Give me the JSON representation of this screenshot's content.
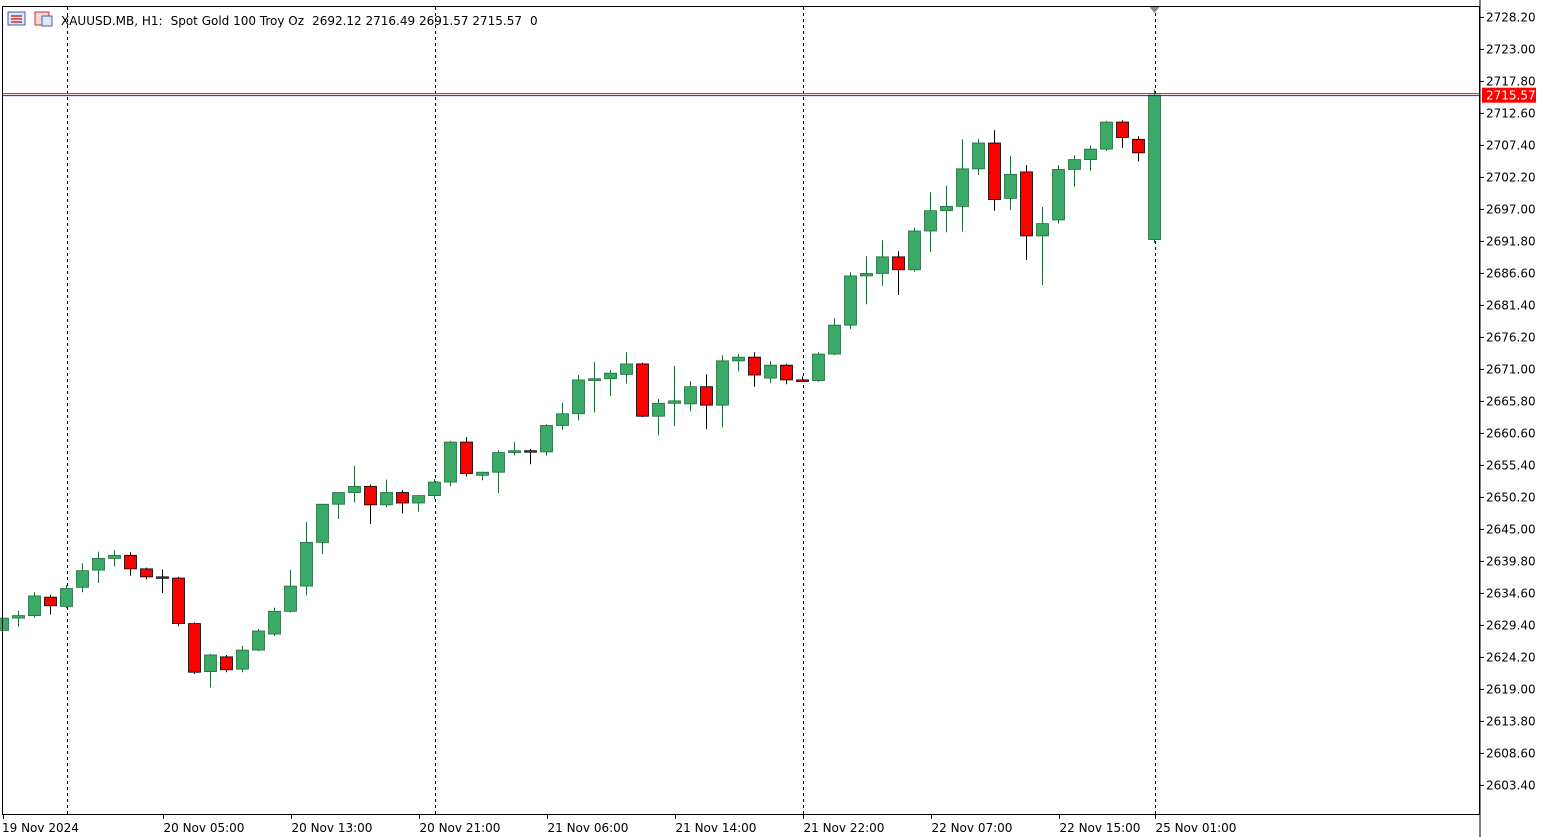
{
  "header": {
    "symbol": "XAUUSD.MB, H1:",
    "description": "Spot Gold 100 Troy Oz",
    "ohlc": "2692.12 2716.49 2691.57 2715.57",
    "volume": "0"
  },
  "colors": {
    "bull": "#3aaa66",
    "bear": "#ff0000",
    "price_line_red": "#ff0000",
    "price_line_blue": "#1a1aff",
    "price_label_bg": "#ff0000",
    "grid_separator": "#000000",
    "border": "#000000"
  },
  "icons": [
    "chart-list-icon",
    "chart-window-icon"
  ],
  "chart_data": {
    "type": "candlestick",
    "title": "XAUUSD.MB, H1:  Spot Gold 100 Troy Oz",
    "ylim": [
      2598.6,
      2729.9
    ],
    "y_ticks": [
      "2728.20",
      "2723.00",
      "2717.80",
      "2712.60",
      "2707.40",
      "2702.20",
      "2697.00",
      "2691.80",
      "2686.60",
      "2681.40",
      "2676.20",
      "2671.00",
      "2665.80",
      "2660.60",
      "2655.40",
      "2650.20",
      "2645.00",
      "2639.80",
      "2634.60",
      "2629.40",
      "2624.20",
      "2619.00",
      "2613.80",
      "2608.60",
      "2603.40"
    ],
    "y_tick_values": [
      2728.2,
      2723.0,
      2717.8,
      2712.6,
      2707.4,
      2702.2,
      2697.0,
      2691.8,
      2686.6,
      2681.4,
      2676.2,
      2671.0,
      2665.8,
      2660.6,
      2655.4,
      2650.2,
      2645.0,
      2639.8,
      2634.6,
      2629.4,
      2624.2,
      2619.0,
      2613.8,
      2608.6,
      2603.4
    ],
    "x_labels": [
      {
        "label": "19 Nov 2024",
        "bar": 0
      },
      {
        "label": "20 Nov 05:00",
        "bar": 10
      },
      {
        "label": "20 Nov 13:00",
        "bar": 18
      },
      {
        "label": "20 Nov 21:00",
        "bar": 26
      },
      {
        "label": "21 Nov 06:00",
        "bar": 34
      },
      {
        "label": "21 Nov 14:00",
        "bar": 42
      },
      {
        "label": "21 Nov 22:00",
        "bar": 50
      },
      {
        "label": "22 Nov 07:00",
        "bar": 58
      },
      {
        "label": "22 Nov 15:00",
        "bar": 66
      },
      {
        "label": "25 Nov 01:00",
        "bar": 72
      }
    ],
    "session_separators": [
      4,
      27,
      50,
      72
    ],
    "last_price": 2715.57,
    "last_price_label": "2715.57",
    "candles": [
      [
        2628.6,
        2630.9,
        2628.0,
        2630.6
      ],
      [
        2630.6,
        2631.8,
        2629.2,
        2631.0
      ],
      [
        2631.0,
        2634.8,
        2630.7,
        2634.2
      ],
      [
        2634.0,
        2634.4,
        2631.2,
        2632.6
      ],
      [
        2632.5,
        2636.0,
        2632.2,
        2635.4
      ],
      [
        2635.6,
        2639.5,
        2634.8,
        2638.3
      ],
      [
        2638.4,
        2641.4,
        2636.3,
        2640.3
      ],
      [
        2640.3,
        2641.6,
        2639.0,
        2640.8
      ],
      [
        2640.8,
        2641.3,
        2637.5,
        2638.6
      ],
      [
        2638.6,
        2638.8,
        2636.9,
        2637.3
      ],
      [
        2637.3,
        2638.5,
        2634.7,
        2637.1
      ],
      [
        2637.1,
        2637.3,
        2629.3,
        2629.7
      ],
      [
        2629.7,
        2629.9,
        2621.5,
        2621.8
      ],
      [
        2621.9,
        2624.8,
        2619.3,
        2624.6
      ],
      [
        2624.3,
        2624.6,
        2621.8,
        2622.2
      ],
      [
        2622.3,
        2626.1,
        2621.8,
        2625.4
      ],
      [
        2625.4,
        2628.8,
        2625.2,
        2628.5
      ],
      [
        2628.0,
        2632.3,
        2627.7,
        2631.7
      ],
      [
        2631.7,
        2638.4,
        2631.5,
        2635.8
      ],
      [
        2635.8,
        2646.2,
        2634.3,
        2642.9
      ],
      [
        2642.9,
        2649.1,
        2641.0,
        2649.1
      ],
      [
        2649.1,
        2651.0,
        2646.7,
        2651.0
      ],
      [
        2651.0,
        2655.3,
        2649.4,
        2652.0
      ],
      [
        2652.0,
        2652.3,
        2645.9,
        2649.0
      ],
      [
        2649.0,
        2653.1,
        2648.6,
        2651.0
      ],
      [
        2651.0,
        2651.4,
        2647.6,
        2649.3
      ],
      [
        2649.3,
        2650.6,
        2647.9,
        2650.5
      ],
      [
        2650.5,
        2653.2,
        2649.9,
        2652.7
      ],
      [
        2652.7,
        2659.4,
        2652.0,
        2659.2
      ],
      [
        2659.2,
        2660.0,
        2653.6,
        2654.1
      ],
      [
        2653.8,
        2654.4,
        2653.0,
        2654.3
      ],
      [
        2654.3,
        2657.9,
        2650.9,
        2657.5
      ],
      [
        2657.5,
        2659.2,
        2657.0,
        2657.8
      ],
      [
        2657.8,
        2658.1,
        2655.6,
        2657.6
      ],
      [
        2657.6,
        2662.1,
        2657.0,
        2661.9
      ],
      [
        2661.9,
        2665.6,
        2661.2,
        2663.8
      ],
      [
        2663.8,
        2670.1,
        2662.7,
        2669.3
      ],
      [
        2669.2,
        2672.2,
        2664.0,
        2669.5
      ],
      [
        2669.5,
        2670.9,
        2666.7,
        2670.4
      ],
      [
        2670.2,
        2673.8,
        2668.7,
        2671.9
      ],
      [
        2671.9,
        2672.1,
        2663.3,
        2663.4
      ],
      [
        2663.4,
        2666.2,
        2660.3,
        2665.5
      ],
      [
        2665.5,
        2671.6,
        2661.8,
        2665.9
      ],
      [
        2665.4,
        2669.1,
        2664.2,
        2668.2
      ],
      [
        2668.2,
        2670.2,
        2661.3,
        2665.2
      ],
      [
        2665.2,
        2673.3,
        2661.6,
        2672.4
      ],
      [
        2672.4,
        2673.5,
        2670.7,
        2673.0
      ],
      [
        2673.0,
        2673.8,
        2668.2,
        2670.1
      ],
      [
        2669.6,
        2672.4,
        2668.8,
        2671.7
      ],
      [
        2671.7,
        2671.9,
        2668.6,
        2669.3
      ],
      [
        2669.3,
        2669.9,
        2669.0,
        2669.1
      ],
      [
        2669.2,
        2673.8,
        2669.0,
        2673.5
      ],
      [
        2673.5,
        2679.3,
        2673.3,
        2678.2
      ],
      [
        2678.2,
        2686.8,
        2677.6,
        2686.2
      ],
      [
        2686.2,
        2689.4,
        2681.6,
        2686.6
      ],
      [
        2686.6,
        2692.0,
        2684.6,
        2689.3
      ],
      [
        2689.3,
        2690.2,
        2683.1,
        2687.2
      ],
      [
        2687.2,
        2694.0,
        2686.9,
        2693.5
      ],
      [
        2693.5,
        2699.8,
        2690.1,
        2696.8
      ],
      [
        2696.8,
        2700.9,
        2693.3,
        2697.5
      ],
      [
        2697.5,
        2708.4,
        2693.4,
        2703.6
      ],
      [
        2703.6,
        2708.5,
        2702.6,
        2707.8
      ],
      [
        2707.8,
        2709.9,
        2696.8,
        2698.6
      ],
      [
        2698.8,
        2705.7,
        2696.9,
        2702.7
      ],
      [
        2703.1,
        2704.2,
        2688.8,
        2692.7
      ],
      [
        2692.7,
        2697.4,
        2684.7,
        2694.7
      ],
      [
        2695.3,
        2704.2,
        2694.7,
        2703.5
      ],
      [
        2703.5,
        2705.8,
        2700.7,
        2705.1
      ],
      [
        2705.1,
        2707.4,
        2703.3,
        2706.8
      ],
      [
        2706.8,
        2711.4,
        2706.5,
        2711.2
      ],
      [
        2711.2,
        2711.5,
        2707.0,
        2708.7
      ],
      [
        2708.4,
        2708.9,
        2704.8,
        2706.2
      ],
      [
        2692.12,
        2716.49,
        2691.57,
        2715.57
      ]
    ]
  }
}
